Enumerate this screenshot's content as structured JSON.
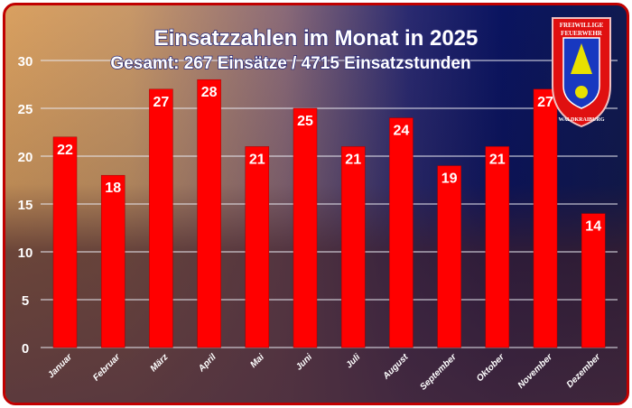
{
  "chart_data": {
    "type": "bar",
    "title": "Einsatzzahlen im Monat in 2025",
    "subtitle": "Gesamt: 267 Einsätze / 4715 Einsatzstunden",
    "categories": [
      "Januar",
      "Februar",
      "März",
      "April",
      "Mai",
      "Juni",
      "Juli",
      "August",
      "September",
      "Oktober",
      "November",
      "Dezember"
    ],
    "values": [
      22,
      18,
      27,
      28,
      21,
      25,
      21,
      24,
      19,
      21,
      27,
      14
    ],
    "ylim": [
      0,
      30
    ],
    "yticks": [
      0,
      5,
      10,
      15,
      20,
      25,
      30
    ],
    "grid": true,
    "bar_color": "#ff0000",
    "frame_color": "#c00000"
  },
  "logo": {
    "text_top": "FREIWILLIGE FEUERWEHR",
    "text_bottom": "WALDKRAIBURG"
  }
}
